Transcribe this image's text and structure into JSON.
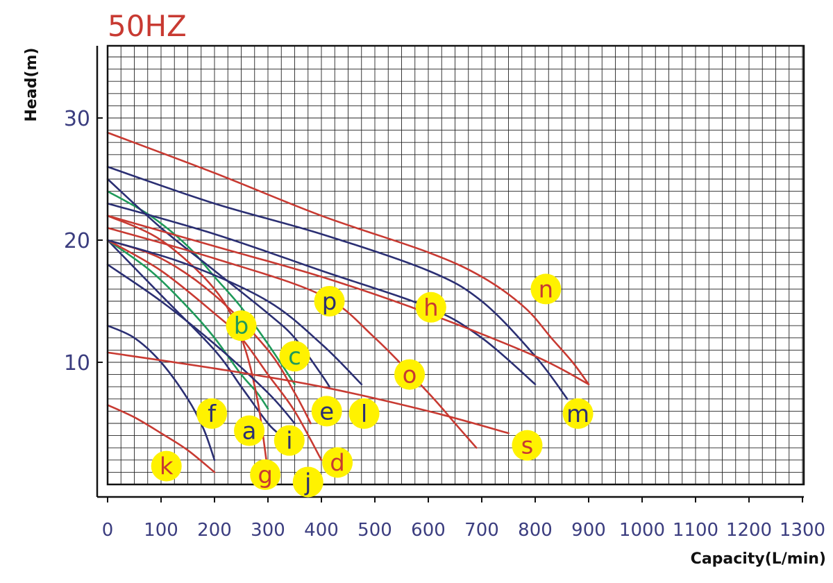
{
  "chart_data": {
    "type": "line",
    "title": "50HZ",
    "xlabel": "Capacity(L/min)",
    "ylabel": "Head(m)",
    "xlim": [
      0,
      1300
    ],
    "ylim": [
      0,
      36
    ],
    "x_ticks": [
      "0",
      "100",
      "200",
      "300",
      "400",
      "500",
      "600",
      "700",
      "800",
      "900",
      "1000",
      "1100",
      "1200",
      "1300"
    ],
    "y_ticks": [
      "10",
      "20",
      "30"
    ],
    "y_tick_values": [
      10,
      20,
      30
    ],
    "grid": true,
    "colors": {
      "red": "#c83a32",
      "navy": "#2b2f73",
      "green": "#1f9a5a",
      "label_bg": "#fff200",
      "tick_text": "#3b3d7f"
    },
    "series": [
      {
        "name": "a",
        "color": "navy",
        "x": [
          0,
          100,
          200,
          250,
          300,
          325
        ],
        "y": [
          20,
          15.5,
          11,
          8,
          5,
          4
        ]
      },
      {
        "name": "b",
        "color": "green",
        "x": [
          0,
          80,
          150,
          200,
          250,
          300,
          350
        ],
        "y": [
          24,
          22,
          19.5,
          17,
          14.5,
          11.5,
          8.2
        ]
      },
      {
        "name": "c",
        "color": "green",
        "x": [
          0,
          80,
          150,
          200,
          250,
          280,
          300
        ],
        "y": [
          20,
          17.5,
          14.5,
          12,
          9,
          7.5,
          6.2
        ]
      },
      {
        "name": "d",
        "color": "red",
        "x": [
          0,
          100,
          200,
          250,
          300,
          350,
          400
        ],
        "y": [
          20,
          17.5,
          14,
          12,
          9,
          6,
          2
        ]
      },
      {
        "name": "e",
        "color": "navy",
        "x": [
          0,
          100,
          200,
          300,
          350,
          400,
          415
        ],
        "y": [
          25,
          21,
          17.5,
          14,
          12,
          9,
          8
        ]
      },
      {
        "name": "f",
        "color": "navy",
        "x": [
          0,
          50,
          100,
          150,
          180,
          200
        ],
        "y": [
          13,
          12,
          10,
          7,
          4.5,
          2
        ]
      },
      {
        "name": "g",
        "color": "red",
        "x": [
          0,
          100,
          200,
          250,
          280,
          300
        ],
        "y": [
          22,
          20,
          16,
          12,
          7,
          1
        ]
      },
      {
        "name": "h",
        "color": "navy",
        "x": [
          0,
          200,
          400,
          600,
          700,
          800
        ],
        "y": [
          23,
          20.5,
          17.5,
          14.5,
          12,
          8.2
        ]
      },
      {
        "name": "i",
        "color": "navy",
        "x": [
          0,
          100,
          200,
          300,
          350
        ],
        "y": [
          18,
          15,
          11.5,
          7.5,
          5
        ]
      },
      {
        "name": "j",
        "color": "red",
        "x": [
          0,
          100,
          200,
          300,
          350,
          380
        ],
        "y": [
          20,
          18.5,
          15.5,
          11,
          7.5,
          5
        ]
      },
      {
        "name": "k",
        "color": "red",
        "x": [
          0,
          50,
          100,
          150,
          200
        ],
        "y": [
          6.5,
          5.5,
          4.2,
          2.8,
          1
        ]
      },
      {
        "name": "l",
        "color": "navy",
        "x": [
          0,
          150,
          300,
          400,
          475
        ],
        "y": [
          20,
          18,
          15,
          11.5,
          8.2
        ]
      },
      {
        "name": "m",
        "color": "navy",
        "x": [
          0,
          200,
          400,
          600,
          700,
          800,
          860
        ],
        "y": [
          26,
          23,
          20.5,
          17.5,
          15,
          10.5,
          7
        ]
      },
      {
        "name": "n",
        "color": "red",
        "x": [
          0,
          200,
          400,
          600,
          700,
          780,
          830,
          870,
          900
        ],
        "y": [
          28.8,
          25.5,
          22,
          19,
          17,
          14.5,
          12,
          10,
          8.2
        ]
      },
      {
        "name": "o",
        "color": "red",
        "x": [
          0,
          200,
          400,
          500,
          600,
          650,
          690
        ],
        "y": [
          21,
          18.5,
          15.5,
          12,
          7.5,
          5,
          3
        ]
      },
      {
        "name": "p",
        "color": "red",
        "x": [
          0,
          200,
          400,
          600,
          800,
          900
        ],
        "y": [
          22,
          19.5,
          17,
          14,
          10.5,
          8.2
        ]
      },
      {
        "name": "s",
        "color": "red",
        "x": [
          0,
          200,
          400,
          600,
          750
        ],
        "y": [
          10.8,
          9.5,
          8,
          6,
          4.2
        ]
      }
    ],
    "point_labels": [
      {
        "text": "n",
        "x": 820,
        "y": 16,
        "color": "red"
      },
      {
        "text": "p",
        "x": 415,
        "y": 15,
        "color": "navy"
      },
      {
        "text": "h",
        "x": 605,
        "y": 14.5,
        "color": "red"
      },
      {
        "text": "b",
        "x": 250,
        "y": 13,
        "color": "green"
      },
      {
        "text": "c",
        "x": 350,
        "y": 10.5,
        "color": "green"
      },
      {
        "text": "o",
        "x": 565,
        "y": 9,
        "color": "red"
      },
      {
        "text": "e",
        "x": 410,
        "y": 6,
        "color": "navy"
      },
      {
        "text": "l",
        "x": 480,
        "y": 5.8,
        "color": "navy"
      },
      {
        "text": "m",
        "x": 880,
        "y": 5.8,
        "color": "navy"
      },
      {
        "text": "f",
        "x": 195,
        "y": 5.8,
        "color": "navy"
      },
      {
        "text": "a",
        "x": 265,
        "y": 4.4,
        "color": "navy"
      },
      {
        "text": "i",
        "x": 340,
        "y": 3.6,
        "color": "navy"
      },
      {
        "text": "s",
        "x": 785,
        "y": 3.2,
        "color": "red"
      },
      {
        "text": "d",
        "x": 430,
        "y": 1.8,
        "color": "red"
      },
      {
        "text": "k",
        "x": 110,
        "y": 1.5,
        "color": "red"
      },
      {
        "text": "g",
        "x": 295,
        "y": 0.8,
        "color": "red"
      },
      {
        "text": "j",
        "x": 375,
        "y": 0.2,
        "color": "navy"
      }
    ]
  }
}
